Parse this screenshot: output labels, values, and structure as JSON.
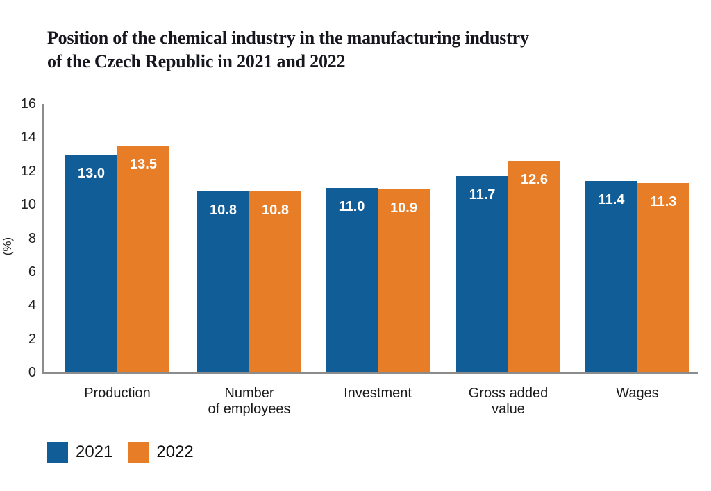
{
  "title": {
    "line1": "Position of the chemical industry in the manufacturing industry",
    "line2": "of the Czech Republic in 2021 and 2022"
  },
  "chart_data": {
    "type": "bar",
    "title": "Position of the chemical industry in the manufacturing industry of the Czech Republic in 2021 and 2022",
    "categories": [
      "Production",
      "Number of employees",
      "Investment",
      "Gross added value",
      "Wages"
    ],
    "category_label_lines": [
      [
        "Production"
      ],
      [
        "Number",
        "of employees"
      ],
      [
        "Investment"
      ],
      [
        "Gross added",
        "value"
      ],
      [
        "Wages"
      ]
    ],
    "series": [
      {
        "name": "2021",
        "color": "#115d97",
        "values": [
          13.0,
          10.8,
          11.0,
          11.7,
          11.4
        ]
      },
      {
        "name": "2022",
        "color": "#e87d28",
        "values": [
          13.5,
          10.8,
          10.9,
          12.6,
          11.3
        ]
      }
    ],
    "xlabel": "",
    "ylabel": "(%)",
    "ylim": [
      0,
      16
    ],
    "yticks": [
      0,
      2,
      4,
      6,
      8,
      10,
      12,
      14,
      16
    ],
    "grid": false,
    "value_labels": true,
    "legend_position": "bottom-left",
    "colors": {
      "axis": "#8c8c8c",
      "value_label_text": "#ffffff",
      "title_text": "#16161f"
    }
  }
}
